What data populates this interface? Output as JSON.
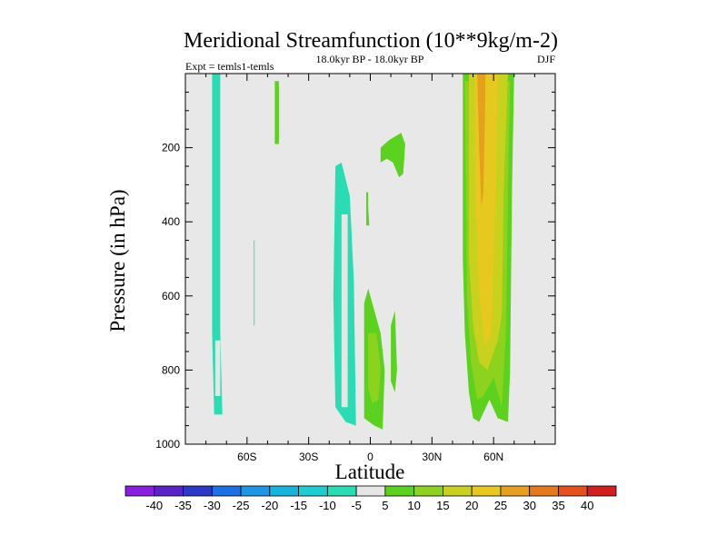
{
  "chart_data": {
    "type": "contour",
    "title": "Meridional Streamfunction (10**9kg/m-2)",
    "left_label": "Expt = temls1-temls",
    "center_label": "18.0kyr BP - 18.0kyr BP",
    "right_label": "DJF",
    "xlabel": "Latitude",
    "ylabel": "Pressure (in hPa)",
    "xlim": [
      -90,
      90
    ],
    "ylim": [
      1000,
      0
    ],
    "x_ticks": [
      {
        "value": -60,
        "label": "60S"
      },
      {
        "value": -30,
        "label": "30S"
      },
      {
        "value": 0,
        "label": "0"
      },
      {
        "value": 30,
        "label": "30N"
      },
      {
        "value": 60,
        "label": "60N"
      }
    ],
    "y_ticks": [
      {
        "value": 200,
        "label": "200"
      },
      {
        "value": 400,
        "label": "400"
      },
      {
        "value": 600,
        "label": "600"
      },
      {
        "value": 800,
        "label": "800"
      },
      {
        "value": 1000,
        "label": "1000"
      }
    ],
    "background_color": "#e8e8e8",
    "colorbar": {
      "levels": [
        -40,
        -35,
        -30,
        -25,
        -20,
        -15,
        -10,
        -5,
        5,
        10,
        15,
        20,
        25,
        30,
        35,
        40
      ],
      "colors": [
        "#8a1ee0",
        "#5a23c8",
        "#2d37c8",
        "#1e6ee6",
        "#1e96e6",
        "#14b4dc",
        "#1ecdd2",
        "#28dcb4",
        "#e6e6e6",
        "#5ad21e",
        "#8cd21e",
        "#c8d21e",
        "#e6c81e",
        "#e6a01e",
        "#e6781e",
        "#e6501e",
        "#d21e1e"
      ]
    },
    "regions": [
      {
        "name": "sh-polar-column",
        "value": -10,
        "points": [
          [
            -77,
            0
          ],
          [
            -73,
            0
          ],
          [
            -73,
            700
          ],
          [
            -72,
            920
          ],
          [
            -76,
            920
          ],
          [
            -77,
            700
          ]
        ]
      },
      {
        "name": "sh-polar-inner",
        "value": -5,
        "points": [
          [
            -75.5,
            720
          ],
          [
            -73,
            720
          ],
          [
            -73,
            870
          ],
          [
            -75.5,
            870
          ]
        ]
      },
      {
        "name": "sh-thin-strip",
        "value": -10,
        "points": [
          [
            -56.7,
            450
          ],
          [
            -56.3,
            450
          ],
          [
            -56.3,
            680
          ],
          [
            -56.7,
            680
          ]
        ]
      },
      {
        "name": "sh-upper-blob",
        "value": 5,
        "points": [
          [
            -46.5,
            20
          ],
          [
            -44.5,
            20
          ],
          [
            -44.5,
            190
          ],
          [
            -46.5,
            190
          ]
        ]
      },
      {
        "name": "sh-subtropical-cell",
        "value": -10,
        "points": [
          [
            -17,
            250
          ],
          [
            -14,
            240
          ],
          [
            -10,
            330
          ],
          [
            -8,
            560
          ],
          [
            -7,
            950
          ],
          [
            -12,
            940
          ],
          [
            -17,
            900
          ],
          [
            -18,
            600
          ]
        ]
      },
      {
        "name": "sh-subtropical-core",
        "value": -5,
        "points": [
          [
            -14,
            380
          ],
          [
            -11,
            380
          ],
          [
            -11,
            900
          ],
          [
            -14,
            900
          ]
        ]
      },
      {
        "name": "eq-small-blob",
        "value": 5,
        "points": [
          [
            -2,
            320
          ],
          [
            -1,
            320
          ],
          [
            -1,
            360
          ],
          [
            -0.5,
            410
          ],
          [
            -2,
            410
          ]
        ]
      },
      {
        "name": "nh-upper-blob",
        "value": 5,
        "points": [
          [
            5,
            200
          ],
          [
            9,
            180
          ],
          [
            12,
            170
          ],
          [
            15,
            160
          ],
          [
            17,
            190
          ],
          [
            16,
            270
          ],
          [
            14,
            280
          ],
          [
            11,
            240
          ],
          [
            8,
            230
          ],
          [
            5,
            240
          ]
        ]
      },
      {
        "name": "eq-lower-cell",
        "value": 5,
        "points": [
          [
            -3,
            620
          ],
          [
            -1,
            580
          ],
          [
            2,
            640
          ],
          [
            5,
            700
          ],
          [
            7,
            800
          ],
          [
            6,
            960
          ],
          [
            2,
            950
          ],
          [
            -3,
            930
          ],
          [
            -3,
            800
          ]
        ]
      },
      {
        "name": "eq-lower-core",
        "value": 10,
        "points": [
          [
            -1,
            700
          ],
          [
            3,
            700
          ],
          [
            5,
            800
          ],
          [
            4,
            880
          ],
          [
            1,
            890
          ],
          [
            -1,
            850
          ]
        ]
      },
      {
        "name": "nh-lower-strip",
        "value": 5,
        "points": [
          [
            10,
            680
          ],
          [
            12,
            640
          ],
          [
            13,
            800
          ],
          [
            12,
            860
          ],
          [
            10,
            830
          ]
        ]
      },
      {
        "name": "nh-cell-outer",
        "value": 5,
        "points": [
          [
            45,
            0
          ],
          [
            70,
            0
          ],
          [
            69,
            300
          ],
          [
            68,
            800
          ],
          [
            67,
            940
          ],
          [
            62,
            930
          ],
          [
            58,
            880
          ],
          [
            53,
            940
          ],
          [
            50,
            930
          ],
          [
            48,
            860
          ],
          [
            46,
            700
          ],
          [
            45,
            500
          ]
        ]
      },
      {
        "name": "nh-cell-mid",
        "value": 10,
        "points": [
          [
            46,
            20
          ],
          [
            68,
            20
          ],
          [
            67,
            300
          ],
          [
            66,
            700
          ],
          [
            64,
            900
          ],
          [
            60,
            820
          ],
          [
            55,
            870
          ],
          [
            52,
            880
          ],
          [
            49,
            780
          ],
          [
            47,
            600
          ]
        ]
      },
      {
        "name": "nh-cell-inner",
        "value": 15,
        "points": [
          [
            48,
            0
          ],
          [
            67,
            0
          ],
          [
            65,
            300
          ],
          [
            64,
            650
          ],
          [
            62,
            720
          ],
          [
            57,
            800
          ],
          [
            53,
            780
          ],
          [
            50,
            680
          ],
          [
            48,
            500
          ]
        ]
      },
      {
        "name": "nh-cell-core",
        "value": 20,
        "points": [
          [
            51,
            0
          ],
          [
            62,
            0
          ],
          [
            61,
            300
          ],
          [
            59,
            700
          ],
          [
            56,
            740
          ],
          [
            53,
            600
          ],
          [
            51,
            300
          ]
        ]
      },
      {
        "name": "nh-cell-max",
        "value": 25,
        "points": [
          [
            52,
            0
          ],
          [
            56,
            0
          ],
          [
            56,
            60
          ],
          [
            55,
            320
          ],
          [
            54,
            360
          ],
          [
            53,
            200
          ]
        ]
      }
    ]
  }
}
